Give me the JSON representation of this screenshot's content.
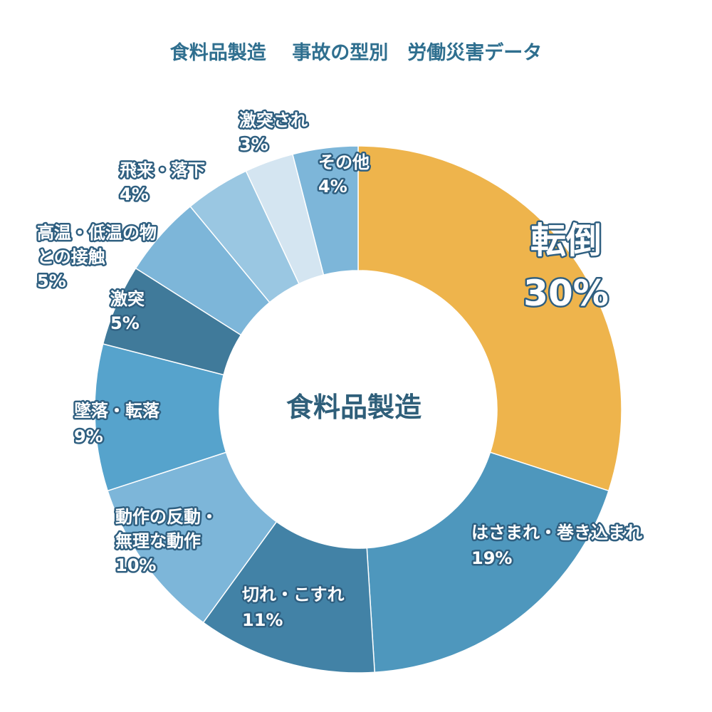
{
  "title": "食料品製造　 事故の型別　労働災害データ",
  "center_label": "食料品製造",
  "chart_data": {
    "type": "pie",
    "title": "食料品製造　 事故の型別　労働災害データ",
    "donut": true,
    "center_label": "食料品製造",
    "slices": [
      {
        "lines": [
          "転倒"
        ],
        "pct_label": "30%",
        "value": 30,
        "color": "#eeb44c"
      },
      {
        "lines": [
          "はさまれ・巻き込まれ"
        ],
        "pct_label": "19%",
        "value": 19,
        "color": "#4e97bd"
      },
      {
        "lines": [
          "切れ・こすれ"
        ],
        "pct_label": "11%",
        "value": 11,
        "color": "#4282a6"
      },
      {
        "lines": [
          "動作の反動・",
          "無理な動作"
        ],
        "pct_label": "10%",
        "value": 10,
        "color": "#7db6d9"
      },
      {
        "lines": [
          "墜落・転落"
        ],
        "pct_label": "9%",
        "value": 9,
        "color": "#56a3cc"
      },
      {
        "lines": [
          "激突"
        ],
        "pct_label": "5%",
        "value": 5,
        "color": "#407a9a"
      },
      {
        "lines": [
          "高温・低温の物",
          "との接触"
        ],
        "pct_label": "5%",
        "value": 5,
        "color": "#7db6d9"
      },
      {
        "lines": [
          "飛来・落下"
        ],
        "pct_label": "4%",
        "value": 4,
        "color": "#9ac7e2"
      },
      {
        "lines": [
          "激突され"
        ],
        "pct_label": "3%",
        "value": 3,
        "color": "#d4e5f1"
      },
      {
        "lines": [
          "その他"
        ],
        "pct_label": "4%",
        "value": 4,
        "color": "#7db6d9"
      }
    ]
  }
}
